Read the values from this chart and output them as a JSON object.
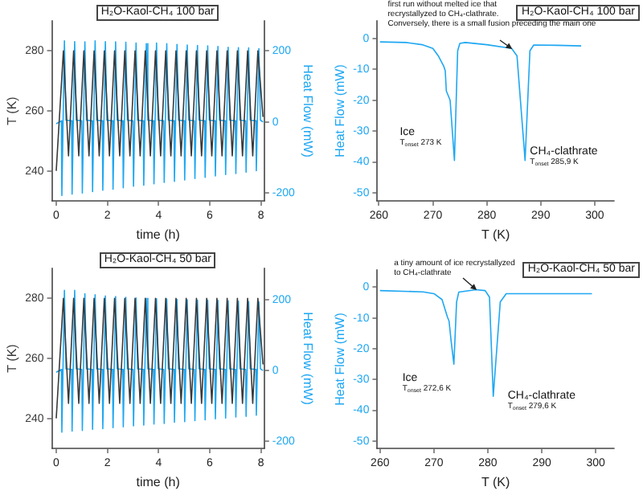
{
  "chart_data": [
    {
      "type": "line",
      "title": "H₂O-Kaol-CH₄ 100 bar",
      "xlabel": "time (h)",
      "ylabel": "T (K)",
      "y2label": "Heat Flow (mW)",
      "xlim": [
        -0.17,
        8.13
      ],
      "xticks": [
        0,
        2,
        4,
        6,
        8
      ],
      "ylim": [
        230,
        290
      ],
      "yticks": [
        240,
        260,
        280
      ],
      "y2lim": [
        -222,
        284
      ],
      "y2ticks": [
        -200,
        0,
        200
      ],
      "series": [
        {
          "color": "#3a3a3a",
          "x": [
            0,
            0.28,
            0.48,
            0.68,
            0.88,
            1.08,
            1.28,
            1.48,
            1.68,
            1.88,
            2.08,
            2.28,
            2.48,
            2.68,
            2.88,
            3.08,
            3.28,
            3.48,
            3.68,
            3.88,
            4.08,
            4.28,
            4.48,
            4.68,
            4.88,
            5.08,
            5.28,
            5.48,
            5.68,
            5.88,
            6.08,
            6.28,
            6.48,
            6.68,
            6.88,
            7.08,
            7.28,
            7.48,
            7.68,
            7.88,
            8.08
          ],
          "values": [
            240,
            280,
            245,
            280,
            245,
            280,
            245,
            280,
            245,
            280,
            245,
            280,
            245,
            280,
            245,
            280,
            245,
            280,
            245,
            280,
            245,
            280,
            245,
            280,
            245,
            280,
            245,
            280,
            245,
            280,
            245,
            280,
            245,
            280,
            245,
            280,
            245,
            280,
            245,
            280,
            258
          ]
        },
        {
          "color": "#1ea7f2",
          "axis": "y2",
          "x": [
            0,
            0.2,
            0.22,
            0.32,
            0.38,
            0.6,
            0.62,
            0.72,
            0.78,
            1.0,
            1.02,
            1.12,
            1.18,
            1.4,
            1.42,
            1.52,
            1.58,
            1.8,
            1.82,
            1.92,
            1.98,
            2.2,
            2.22,
            2.32,
            2.38,
            2.6,
            2.62,
            2.72,
            2.78,
            3.0,
            3.02,
            3.12,
            3.18,
            3.4,
            3.42,
            3.52,
            3.58,
            3.8,
            3.82,
            3.92,
            3.98,
            4.2,
            4.22,
            4.32,
            4.38,
            4.6,
            4.62,
            4.72,
            4.78,
            5.0,
            5.02,
            5.12,
            5.18,
            5.4,
            5.42,
            5.52,
            5.58,
            5.8,
            5.82,
            5.92,
            5.98,
            6.2,
            6.22,
            6.32,
            6.38,
            6.6,
            6.62,
            6.72,
            6.78,
            7.0,
            7.02,
            7.12,
            7.18,
            7.4,
            7.42,
            7.52,
            7.58,
            7.8,
            7.82,
            7.92,
            7.98,
            8.08
          ],
          "values": [
            -5,
            3,
            -207,
            228,
            5,
            3,
            -203,
            226,
            5,
            3,
            -200,
            225,
            5,
            3,
            -196,
            228,
            5,
            3,
            -192,
            226,
            5,
            3,
            -189,
            225,
            5,
            3,
            -185,
            224,
            5,
            3,
            -181,
            222,
            5,
            3,
            -178,
            220,
            5,
            3,
            -174,
            222,
            5,
            3,
            -170,
            220,
            5,
            3,
            -167,
            218,
            5,
            3,
            -163,
            216,
            5,
            3,
            -159,
            215,
            5,
            3,
            -156,
            214,
            5,
            3,
            -152,
            212,
            5,
            3,
            -148,
            210,
            5,
            3,
            -145,
            209,
            5,
            3,
            -141,
            208,
            5,
            3,
            -137,
            206,
            5,
            0
          ]
        }
      ]
    },
    {
      "type": "line",
      "title": "H₂O-Kaol-CH₄ 100 bar",
      "xlabel": "T (K)",
      "ylabel": "Heat Flow (mW)",
      "xlim": [
        259.7,
        303.6
      ],
      "xticks": [
        260,
        270,
        280,
        290,
        300
      ],
      "ylim": [
        -52.6,
        5.7
      ],
      "yticks": [
        -50,
        -40,
        -30,
        -20,
        -10,
        0
      ],
      "annotations": [
        {
          "text": "first run without melted ice that\nrecrystallyzed to CH₄-clathrate.\nConversely, there is a small fusion preceding the main one",
          "x": 284.6,
          "y": -3.2
        },
        {
          "text": "Ice\nT$_{onset}$ 273 K",
          "x": 274,
          "y": -39.5
        },
        {
          "text": "CH₄-clathrate\nT$_{onset}$ 285,9 K",
          "x": 287.1,
          "y": -39.5
        }
      ],
      "series": [
        {
          "color": "#1ea7f2",
          "x": [
            260.2,
            265,
            268,
            270,
            271,
            272,
            272.3,
            272.5,
            273.2,
            274,
            274.6,
            275,
            276,
            280,
            284.6,
            285.6,
            287.1,
            288,
            288.7,
            293,
            297.5
          ],
          "values": [
            -1.1,
            -1.3,
            -2,
            -3.2,
            -5.6,
            -8.9,
            -10.5,
            -17,
            -20,
            -39.5,
            -4,
            -1.6,
            -1.3,
            -2,
            -3.2,
            -5.6,
            -39.5,
            -4,
            -2.1,
            -2.2,
            -2.4
          ]
        }
      ]
    },
    {
      "type": "line",
      "title": "H₂O-Kaol-CH₄ 50 bar",
      "xlabel": "time (h)",
      "ylabel": "T (K)",
      "y2label": "Heat Flow (mW)",
      "xlim": [
        -0.17,
        8.13
      ],
      "xticks": [
        0,
        2,
        4,
        6,
        8
      ],
      "ylim": [
        230,
        290
      ],
      "yticks": [
        240,
        260,
        280
      ],
      "y2lim": [
        -221,
        290
      ],
      "y2ticks": [
        -200,
        0,
        200
      ],
      "series": [
        {
          "color": "#3a3a3a",
          "x": [
            0,
            0.28,
            0.48,
            0.68,
            0.88,
            1.08,
            1.28,
            1.48,
            1.68,
            1.88,
            2.08,
            2.28,
            2.48,
            2.68,
            2.88,
            3.08,
            3.28,
            3.48,
            3.68,
            3.88,
            4.08,
            4.28,
            4.48,
            4.68,
            4.88,
            5.08,
            5.28,
            5.48,
            5.68,
            5.88,
            6.08,
            6.28,
            6.48,
            6.68,
            6.88,
            7.08,
            7.28,
            7.48,
            7.68,
            7.88,
            8.08
          ],
          "values": [
            240,
            280,
            245,
            280,
            245,
            280,
            245,
            280,
            245,
            280,
            245,
            280,
            245,
            280,
            245,
            280,
            245,
            280,
            245,
            280,
            245,
            280,
            245,
            280,
            245,
            280,
            245,
            280,
            245,
            280,
            245,
            280,
            245,
            280,
            245,
            280,
            245,
            280,
            245,
            280,
            258
          ]
        },
        {
          "color": "#1ea7f2",
          "axis": "y2",
          "x": [
            0,
            0.2,
            0.22,
            0.32,
            0.38,
            0.6,
            0.62,
            0.72,
            0.78,
            1.0,
            1.02,
            1.12,
            1.18,
            1.4,
            1.42,
            1.52,
            1.58,
            1.8,
            1.82,
            1.92,
            1.98,
            2.2,
            2.22,
            2.32,
            2.38,
            2.6,
            2.62,
            2.72,
            2.78,
            3.0,
            3.02,
            3.12,
            3.18,
            3.4,
            3.42,
            3.52,
            3.58,
            3.8,
            3.82,
            3.92,
            3.98,
            4.2,
            4.22,
            4.32,
            4.38,
            4.6,
            4.62,
            4.72,
            4.78,
            5.0,
            5.02,
            5.12,
            5.18,
            5.4,
            5.42,
            5.52,
            5.58,
            5.8,
            5.82,
            5.92,
            5.98,
            6.2,
            6.22,
            6.32,
            6.38,
            6.6,
            6.62,
            6.72,
            6.78,
            7.0,
            7.02,
            7.12,
            7.18,
            7.4,
            7.42,
            7.52,
            7.58,
            7.8,
            7.82,
            7.92,
            7.98,
            8.08
          ],
          "values": [
            -5,
            3,
            -175,
            228,
            5,
            3,
            -172,
            228,
            5,
            3,
            -170,
            218,
            5,
            3,
            -167,
            215,
            5,
            3,
            -165,
            212,
            5,
            3,
            -162,
            210,
            5,
            3,
            -160,
            208,
            5,
            3,
            -157,
            206,
            5,
            3,
            -155,
            205,
            5,
            3,
            -152,
            204,
            5,
            3,
            -150,
            203,
            5,
            3,
            -147,
            202,
            5,
            3,
            -145,
            201,
            5,
            3,
            -142,
            200,
            5,
            3,
            -140,
            200,
            5,
            3,
            -137,
            199,
            5,
            3,
            -135,
            198,
            5,
            3,
            -132,
            197,
            5,
            3,
            -130,
            196,
            5,
            3,
            -127,
            195,
            5,
            0
          ]
        }
      ]
    },
    {
      "type": "line",
      "title": "H₂O-Kaol-CH₄ 50 bar",
      "xlabel": "T (K)",
      "ylabel": "Heat Flow (mW)",
      "xlim": [
        259.5,
        303.4
      ],
      "xticks": [
        260,
        270,
        280,
        290,
        300
      ],
      "ylim": [
        -52.4,
        5.6
      ],
      "yticks": [
        -50,
        -40,
        -30,
        -20,
        -10,
        0
      ],
      "annotations": [
        {
          "text": "a tiny amount of ice recrystallyzed\nto CH₄-clathrate",
          "x": 277.8,
          "y": -0.8
        },
        {
          "text": "Ice\nT$_{onset}$ 272,6 K",
          "x": 273.7,
          "y": -25
        },
        {
          "text": "CH₄-clathrate\nT$_{onset}$ 279,6 K",
          "x": 281,
          "y": -35.5
        }
      ],
      "series": [
        {
          "color": "#1ea7f2",
          "x": [
            260,
            268,
            270,
            271.5,
            272.5,
            272.8,
            273.2,
            273.7,
            274.2,
            274.6,
            277.8,
            279.5,
            280.3,
            281,
            282.3,
            283.4,
            290,
            299.3
          ],
          "values": [
            -1.1,
            -1.5,
            -2.1,
            -4,
            -9.7,
            -11,
            -17.7,
            -25,
            -4.8,
            -1.6,
            -0.8,
            -1.1,
            -3.2,
            -35.5,
            -4.8,
            -2.1,
            -2.1,
            -2.1
          ]
        }
      ]
    }
  ]
}
